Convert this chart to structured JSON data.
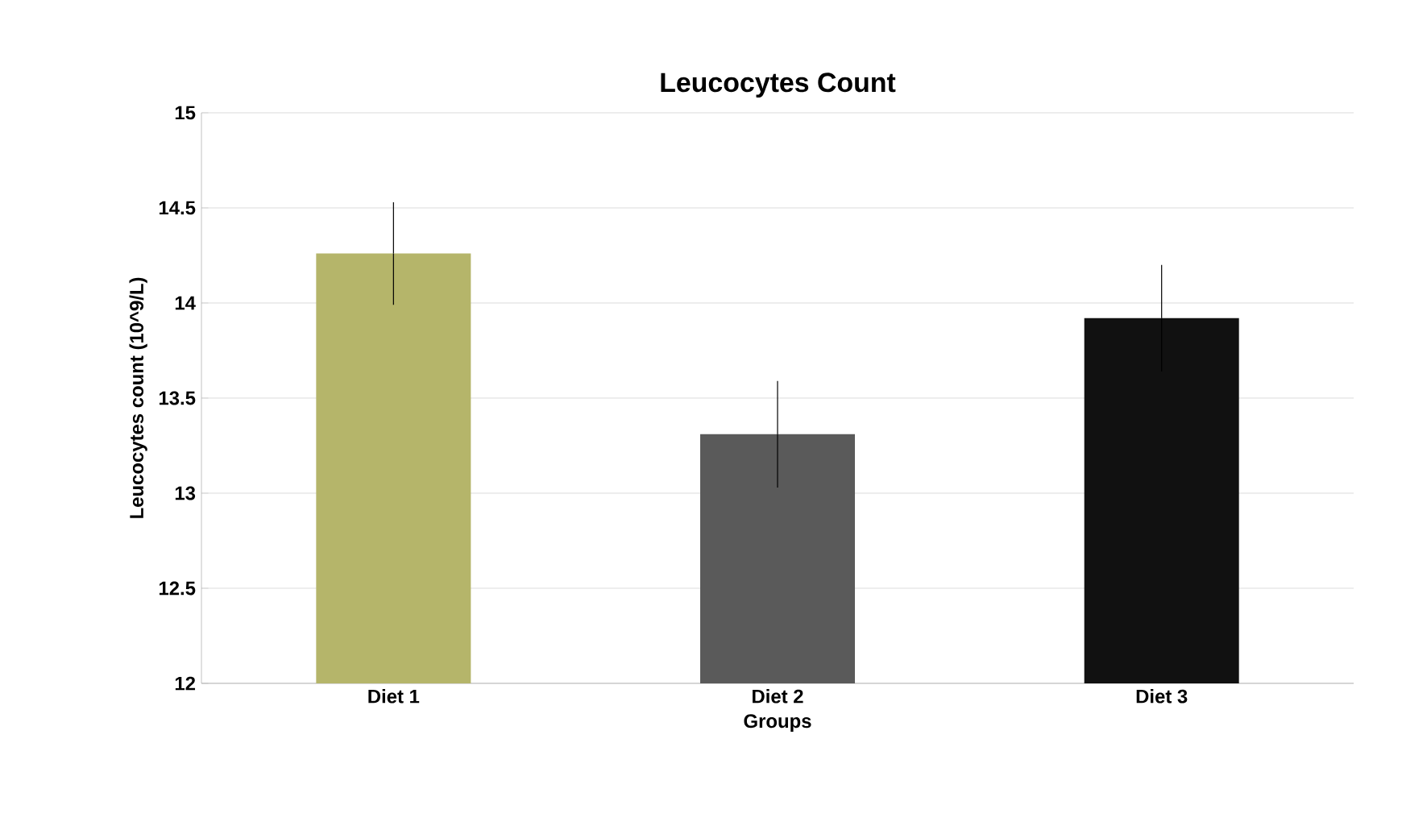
{
  "chart_data": {
    "type": "bar",
    "title": "Leucocytes Count",
    "xlabel": "Groups",
    "ylabel": "Leucocytes count (10^9/L)",
    "categories": [
      "Diet 1",
      "Diet 2",
      "Diet 3"
    ],
    "values": [
      14.26,
      13.31,
      13.92
    ],
    "colors": [
      "#b5b56a",
      "#5a5a5a",
      "#111111"
    ],
    "errors": [
      0.27,
      0.28,
      0.28
    ],
    "ylim": [
      12,
      15
    ],
    "yticks": [
      12,
      12.5,
      13,
      13.5,
      14,
      14.5,
      15
    ],
    "grid": "y"
  }
}
